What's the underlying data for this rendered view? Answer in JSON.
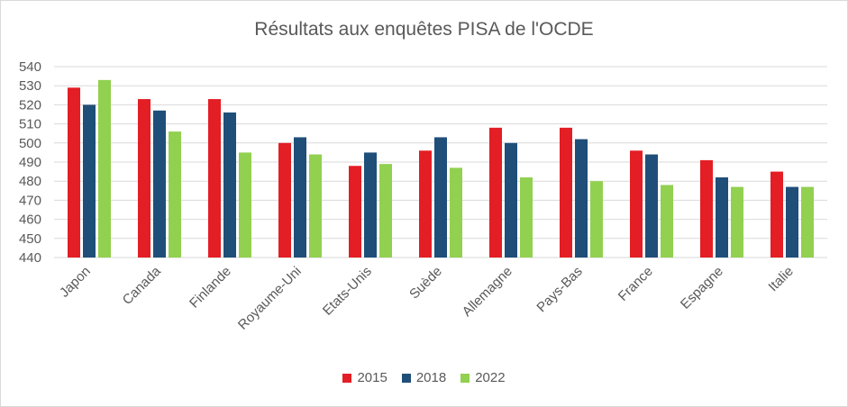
{
  "chart_data": {
    "type": "bar",
    "title": "Résultats aux enquêtes  PISA de l'OCDE",
    "categories": [
      "Japon",
      "Canada",
      "Finlande",
      "Royaume-Uni",
      "Etats-Unis",
      "Suède",
      "Allemagne",
      "Pays-Bas",
      "France",
      "Espagne",
      "Italie"
    ],
    "series": [
      {
        "name": "2015",
        "color": "#e31e24",
        "values": [
          529,
          523,
          523,
          500,
          488,
          496,
          508,
          508,
          496,
          491,
          485
        ]
      },
      {
        "name": "2018",
        "color": "#1f4e79",
        "values": [
          520,
          517,
          516,
          503,
          495,
          503,
          500,
          502,
          494,
          482,
          477
        ]
      },
      {
        "name": "2022",
        "color": "#92d050",
        "values": [
          533,
          506,
          495,
          494,
          489,
          487,
          482,
          480,
          478,
          477,
          477
        ]
      }
    ],
    "ylim": [
      440,
      540
    ],
    "yticks": [
      440,
      450,
      460,
      470,
      480,
      490,
      500,
      510,
      520,
      530,
      540
    ],
    "grid": true,
    "legend_position": "bottom"
  }
}
